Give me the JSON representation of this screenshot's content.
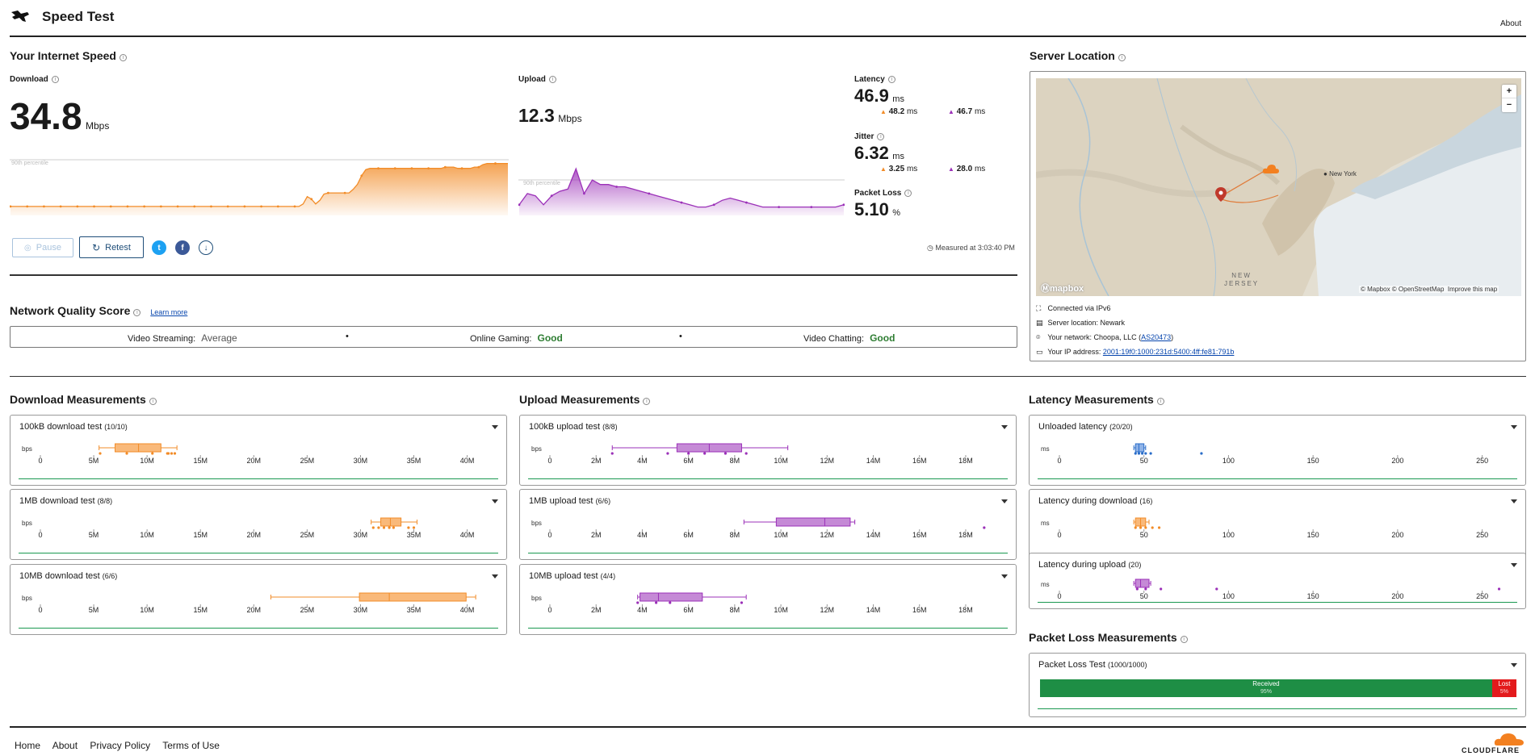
{
  "header": {
    "title": "Speed Test",
    "about": "About"
  },
  "speed": {
    "heading": "Your Internet Speed",
    "download": {
      "label": "Download",
      "value": "34.8",
      "unit": "Mbps",
      "percentile": "90th percentile"
    },
    "upload": {
      "label": "Upload",
      "value": "12.3",
      "unit": "Mbps",
      "percentile": "90th percentile"
    },
    "latency": {
      "label": "Latency",
      "value": "46.9",
      "unit": "ms",
      "down": "48.2",
      "up": "46.7",
      "sub_unit": "ms"
    },
    "jitter": {
      "label": "Jitter",
      "value": "6.32",
      "unit": "ms",
      "down": "3.25",
      "up": "28.0",
      "sub_unit": "ms"
    },
    "packet_loss": {
      "label": "Packet Loss",
      "value": "5.10",
      "unit": "%"
    },
    "pause": "Pause",
    "retest": "Retest",
    "measured": "Measured at 3:03:40 PM"
  },
  "server": {
    "heading": "Server Location",
    "map_attrib": "© Mapbox © OpenStreetMap  Improve this map",
    "mapbox": "mapbox",
    "city_label": "New York",
    "state_label": "NEW\nJERSEY",
    "zoom_in": "+",
    "zoom_out": "−",
    "info": [
      {
        "icon": "network-icon",
        "text": "Connected via IPv6"
      },
      {
        "icon": "server-icon",
        "text": "Server location: Newark"
      },
      {
        "icon": "location-pin-icon",
        "text": "Your network: Choopa, LLC (",
        "link": "AS20473",
        "after": ")"
      },
      {
        "icon": "card-icon",
        "text": "Your IP address: ",
        "link": "2001:19f0:1000:231d:5400:4ff:fe81:791b",
        "after": ""
      }
    ]
  },
  "nqs": {
    "heading": "Network Quality Score",
    "learn_more": "Learn more",
    "items": [
      {
        "label": "Video Streaming:",
        "value": "Average",
        "color": "#555555"
      },
      {
        "label": "Online Gaming:",
        "value": "Good",
        "color": "#2e7d32"
      },
      {
        "label": "Video Chatting:",
        "value": "Good",
        "color": "#2e7d32"
      }
    ]
  },
  "download_measurements": {
    "heading": "Download Measurements",
    "unit": "bps",
    "ticks": [
      "0",
      "5M",
      "10M",
      "15M",
      "20M",
      "25M",
      "30M",
      "35M",
      "40M"
    ],
    "cards": [
      {
        "title": "100kB download test",
        "count": "(10/10)"
      },
      {
        "title": "1MB download test",
        "count": "(8/8)"
      },
      {
        "title": "10MB download test",
        "count": "(6/6)"
      }
    ]
  },
  "upload_measurements": {
    "heading": "Upload Measurements",
    "unit": "bps",
    "ticks": [
      "0",
      "2M",
      "4M",
      "6M",
      "8M",
      "10M",
      "12M",
      "14M",
      "16M",
      "18M"
    ],
    "cards": [
      {
        "title": "100kB upload test",
        "count": "(8/8)"
      },
      {
        "title": "1MB upload test",
        "count": "(6/6)"
      },
      {
        "title": "10MB upload test",
        "count": "(4/4)"
      }
    ]
  },
  "latency_measurements": {
    "heading": "Latency Measurements",
    "unit": "ms",
    "ticks": [
      "0",
      "50",
      "100",
      "150",
      "200",
      "250"
    ],
    "cards": [
      {
        "title": "Unloaded latency",
        "count": "(20/20)"
      },
      {
        "title": "Latency during download",
        "count": "(16)"
      },
      {
        "title": "Latency during upload",
        "count": "(20)"
      }
    ]
  },
  "packet_loss_measurements": {
    "heading": "Packet Loss Measurements",
    "card_title": "Packet Loss Test",
    "card_count": "(1000/1000)",
    "received_label": "Received",
    "received_pct": "95%",
    "lost_label": "Lost",
    "lost_pct": "5%",
    "received_fraction": 0.949
  },
  "footer": {
    "links": [
      "Home",
      "About",
      "Privacy Policy",
      "Terms of Use"
    ],
    "brand": "CLOUDFLARE"
  },
  "colors": {
    "download": "#f28c28",
    "upload": "#9b30b8",
    "latency": "#2a6dc9",
    "good_green": "#1a9850",
    "lost_red": "#e31a1c"
  },
  "chart_data": [
    {
      "type": "box",
      "name": "download",
      "unit": "bps",
      "xlim": [
        0,
        42000000
      ],
      "tests": [
        {
          "title": "100kB download test",
          "min": 5500000,
          "q1": 7000000,
          "median": 9200000,
          "q3": 11300000,
          "max": 12800000,
          "points": [
            5600000,
            8100000,
            10500000,
            11900000,
            12000000,
            12300000,
            12600000
          ]
        },
        {
          "title": "1MB download test",
          "min": 31000000,
          "q1": 31900000,
          "median": 32800000,
          "q3": 33800000,
          "max": 35300000,
          "points": [
            31200000,
            31700000,
            32200000,
            32700000,
            33100000,
            34500000,
            35000000
          ]
        },
        {
          "title": "10MB download test",
          "min": 21600000,
          "q1": 29900000,
          "median": 32700000,
          "q3": 39900000,
          "max": 40800000,
          "points": []
        }
      ]
    },
    {
      "type": "box",
      "name": "upload",
      "unit": "bps",
      "xlim": [
        0,
        19400000
      ],
      "tests": [
        {
          "title": "100kB upload test",
          "min": 2700000,
          "q1": 5500000,
          "median": 6900000,
          "q3": 8300000,
          "max": 10300000,
          "points": [
            2700000,
            5100000,
            6000000,
            6700000,
            7600000,
            8500000
          ]
        },
        {
          "title": "1MB upload test",
          "min": 8400000,
          "q1": 9800000,
          "median": 11900000,
          "q3": 13000000,
          "max": 13200000,
          "points": [
            18800000
          ]
        },
        {
          "title": "10MB upload test",
          "min": 3800000,
          "q1": 3900000,
          "median": 4700000,
          "q3": 6600000,
          "max": 8500000,
          "points": [
            3800000,
            4600000,
            5200000,
            8300000
          ]
        }
      ]
    },
    {
      "type": "box",
      "name": "latency",
      "unit": "ms",
      "xlim": [
        0,
        265
      ],
      "tests": [
        {
          "title": "Unloaded latency",
          "min": 44,
          "q1": 45,
          "median": 47,
          "q3": 50,
          "max": 51,
          "points": [
            45,
            47,
            49,
            51,
            54,
            84
          ]
        },
        {
          "title": "Latency during download",
          "min": 44,
          "q1": 45,
          "median": 48,
          "q3": 51,
          "max": 53,
          "points": [
            45,
            48,
            51,
            55,
            59
          ]
        },
        {
          "title": "Latency during upload",
          "min": 44,
          "q1": 45,
          "median": 48,
          "q3": 53,
          "max": 54,
          "points": [
            46,
            51,
            60,
            93,
            260
          ]
        }
      ]
    },
    {
      "type": "area",
      "name": "download-timeline",
      "unit": "Mbps",
      "values": [
        6,
        6,
        6,
        6,
        6,
        6,
        6,
        6,
        6,
        6,
        6,
        6,
        6,
        6,
        6,
        6,
        6,
        6,
        6,
        6,
        6,
        6,
        6,
        6,
        6,
        6,
        6,
        6,
        6,
        6,
        6,
        6,
        6,
        6,
        6,
        6,
        6,
        6,
        6,
        6,
        6,
        6,
        6,
        6,
        6,
        6,
        6,
        6,
        6,
        6,
        6,
        6,
        6,
        6,
        6,
        6,
        6,
        6,
        6,
        6,
        6,
        6,
        6,
        6,
        6,
        6,
        6,
        6,
        6,
        6,
        8,
        14,
        12,
        8,
        11,
        16,
        17,
        17,
        17,
        17,
        17,
        17,
        20,
        24,
        31,
        36,
        37,
        37,
        37,
        37,
        37,
        37,
        37,
        37,
        37,
        37,
        37,
        37,
        37,
        37,
        37,
        37,
        37,
        37,
        38,
        38,
        38,
        37,
        37,
        37,
        37,
        38,
        38,
        40,
        41,
        41,
        41,
        41,
        41,
        41
      ]
    },
    {
      "type": "area",
      "name": "upload-timeline",
      "unit": "Mbps",
      "values": [
        4,
        9,
        8,
        4,
        8,
        10,
        11,
        20,
        9,
        15,
        13,
        13,
        12,
        12,
        11,
        10,
        9,
        8,
        7,
        6,
        5,
        4,
        3,
        3,
        4,
        6,
        7,
        6,
        5,
        4,
        3,
        3,
        3,
        3,
        3,
        3,
        3,
        3,
        3,
        3,
        4
      ]
    }
  ]
}
